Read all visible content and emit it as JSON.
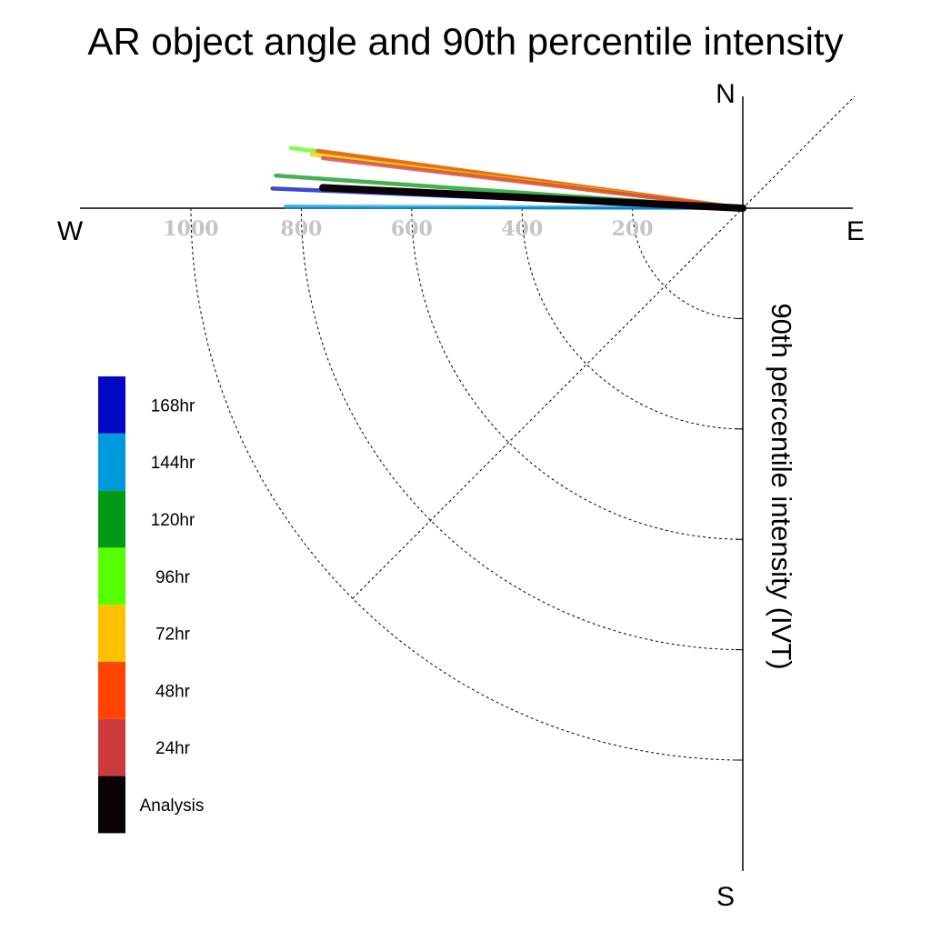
{
  "chart_data": {
    "type": "polar-line",
    "title": "AR object angle and 90th percentile intensity",
    "ylabel": "90th percentile intensity (IVT)",
    "compass": {
      "north": "N",
      "south": "S",
      "east": "E",
      "west": "W"
    },
    "radial_ticks": [
      "200",
      "400",
      "600",
      "800",
      "1000"
    ],
    "radial_range": [
      0,
      1000
    ],
    "grid": true,
    "legend_position": "left",
    "series": [
      {
        "name": "168hr",
        "color": "#0008c4",
        "angle_deg": 177.6,
        "intensity": 853
      },
      {
        "name": "144hr",
        "color": "#0099dd",
        "angle_deg": 179.8,
        "intensity": 828
      },
      {
        "name": "120hr",
        "color": "#009a16",
        "angle_deg": 176.0,
        "intensity": 848
      },
      {
        "name": "96hr",
        "color": "#55ff00",
        "angle_deg": 172.4,
        "intensity": 826
      },
      {
        "name": "72hr",
        "color": "#ffc000",
        "angle_deg": 172.9,
        "intensity": 787
      },
      {
        "name": "48hr",
        "color": "#ff4400",
        "angle_deg": 172.3,
        "intensity": 777
      },
      {
        "name": "24hr",
        "color": "#cc3b3b",
        "angle_deg": 173.2,
        "intensity": 766
      },
      {
        "name": "Analysis",
        "color": "#0a0008",
        "angle_deg": 177.2,
        "intensity": 762
      }
    ]
  }
}
